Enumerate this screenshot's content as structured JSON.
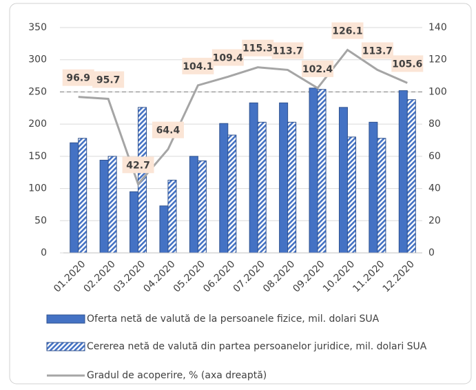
{
  "chart_data": {
    "type": "bar_line",
    "categories": [
      "01.2020",
      "02.2020",
      "03.2020",
      "04.2020",
      "05.2020",
      "06.2020",
      "07.2020",
      "08.2020",
      "09.2020",
      "10.2020",
      "11.2020",
      "12.2020"
    ],
    "series": [
      {
        "name": "Oferta netă de valută de la persoanele fizice, mil. dolari SUA",
        "color": "#4472c4",
        "pattern": "solid",
        "values": [
          171,
          144,
          95,
          73,
          150,
          201,
          233,
          233,
          256,
          226,
          203,
          252
        ]
      },
      {
        "name": "Cererea netă de valută din partea persoanelor juridice, mil. dolari SUA",
        "color": "#4472c4",
        "pattern": "hatched",
        "values": [
          178,
          150,
          226,
          113,
          143,
          183,
          203,
          203,
          254,
          180,
          178,
          238
        ]
      },
      {
        "name": "Gradul de acoperire, % (axa dreaptă)",
        "color": "#a5a5a5",
        "axis": "y2",
        "type": "line",
        "values": [
          96.9,
          95.7,
          42.7,
          64.4,
          104.1,
          109.4,
          115.3,
          113.7,
          102.4,
          126.1,
          113.7,
          105.6
        ]
      }
    ],
    "ylim": [
      0,
      350
    ],
    "yticks": [
      0,
      50,
      100,
      150,
      200,
      250,
      300,
      350
    ],
    "y2lim": [
      0,
      140
    ],
    "y2ticks": [
      0,
      20,
      40,
      60,
      80,
      100,
      120,
      140
    ],
    "y2_reference": 100,
    "grid": true
  }
}
